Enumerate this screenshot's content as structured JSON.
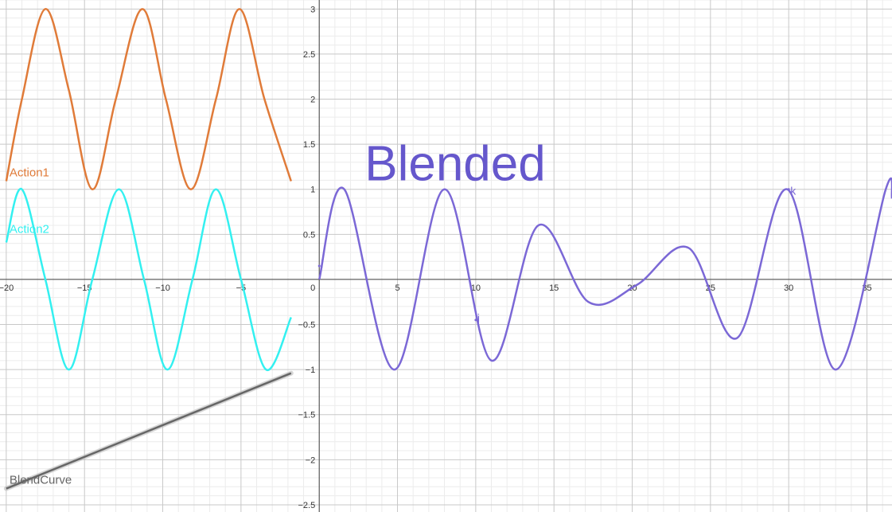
{
  "chart_data": {
    "type": "line",
    "title": "",
    "xlabel": "",
    "ylabel": "",
    "xlim": [
      -20.4,
      36.6
    ],
    "ylim": [
      -2.58,
      3.1
    ],
    "grid": true,
    "x_ticks": [
      -20,
      -15,
      -10,
      -5,
      5,
      10,
      15,
      20,
      25,
      30,
      35
    ],
    "y_ticks": [
      -2.5,
      -2,
      -1.5,
      -1,
      -0.5,
      0.5,
      1,
      1.5,
      2,
      2.5,
      3
    ],
    "origin_label": "0",
    "x_tick_labels": [
      "−20",
      "−15",
      "−10",
      "−5",
      "5",
      "10",
      "15",
      "20",
      "25",
      "30",
      "35"
    ],
    "y_tick_labels": [
      "−2.5",
      "−2",
      "−1.5",
      "−1",
      "−0.5",
      "0.5",
      "1",
      "1.5",
      "2",
      "2.5",
      "3"
    ],
    "annotation": {
      "text": "Blended",
      "color": "#6557cc"
    },
    "series": [
      {
        "name": "Action1",
        "color": "#e07b39",
        "domain": [
          -20,
          -1.8
        ],
        "samples": [
          [
            -20,
            1.09
          ],
          [
            -19.0,
            2.0
          ],
          [
            -17.5,
            3.0
          ],
          [
            -16.0,
            2.1
          ],
          [
            -14.5,
            1.0
          ],
          [
            -13.0,
            2.0
          ],
          [
            -11.3,
            3.0
          ],
          [
            -9.8,
            2.0
          ],
          [
            -8.2,
            1.0
          ],
          [
            -6.6,
            2.0
          ],
          [
            -5.1,
            3.0
          ],
          [
            -3.5,
            2.0
          ],
          [
            -1.8,
            1.09
          ]
        ]
      },
      {
        "name": "Action2",
        "color": "#33f0f0",
        "domain": [
          -20,
          -1.8
        ],
        "samples": [
          [
            -20,
            0.41
          ],
          [
            -19.0,
            1.0
          ],
          [
            -17.5,
            0.0
          ],
          [
            -16.0,
            -1.0
          ],
          [
            -14.5,
            0.0
          ],
          [
            -12.8,
            1.0
          ],
          [
            -11.2,
            0.0
          ],
          [
            -9.7,
            -1.0
          ],
          [
            -8.1,
            0.0
          ],
          [
            -6.6,
            1.0
          ],
          [
            -5.0,
            0.0
          ],
          [
            -3.4,
            -1.0
          ],
          [
            -1.8,
            -0.42
          ]
        ]
      },
      {
        "name": "BlendCurve",
        "color": "#666666",
        "domain": [
          -20,
          -1.8
        ],
        "samples": [
          [
            -20,
            -2.32
          ],
          [
            -1.8,
            -1.04
          ]
        ]
      },
      {
        "name": "",
        "color": "#7b68d6",
        "domain": [
          0,
          36.6
        ],
        "samples": [
          [
            0,
            0.0
          ],
          [
            1.6,
            1.0
          ],
          [
            4.8,
            -1.0
          ],
          [
            8.0,
            1.0
          ],
          [
            11.0,
            -0.9
          ],
          [
            14.0,
            0.6
          ],
          [
            17.2,
            -0.25
          ],
          [
            20.3,
            -0.06
          ],
          [
            23.6,
            0.35
          ],
          [
            26.7,
            -0.65
          ],
          [
            29.9,
            1.0
          ],
          [
            33.0,
            -1.0
          ],
          [
            36.2,
            1.0
          ],
          [
            36.6,
            0.9
          ]
        ]
      }
    ],
    "points": [
      {
        "name": "i",
        "x": 0,
        "y": 0.15
      },
      {
        "name": "j",
        "x": 10,
        "y": -0.45
      },
      {
        "name": "k",
        "x": 30,
        "y": 1.0
      }
    ]
  }
}
